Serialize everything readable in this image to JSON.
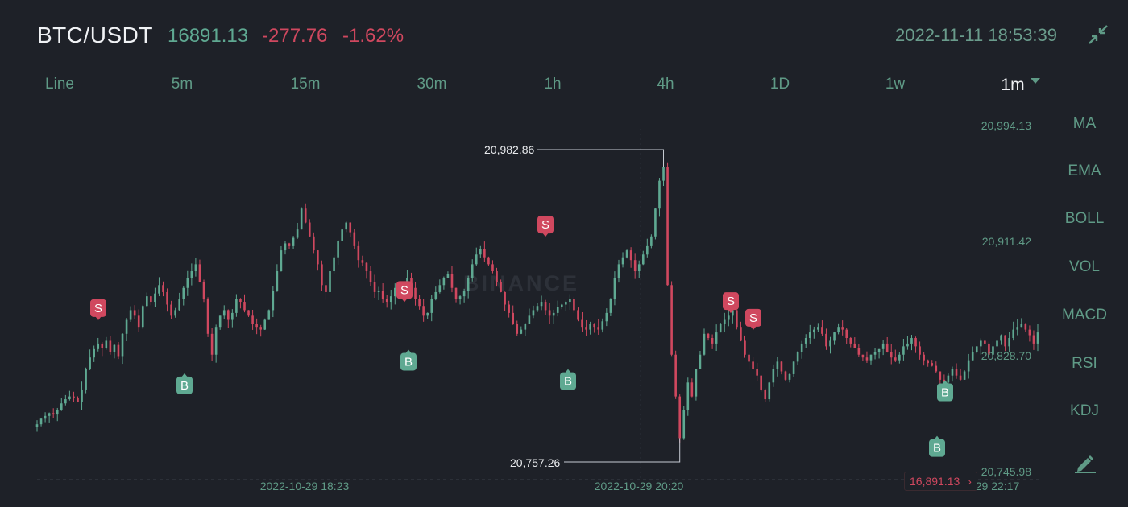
{
  "header": {
    "pair": "BTC/USDT",
    "price": "16891.13",
    "change": "-277.76",
    "change_pct": "-1.62%",
    "datetime": "2022-11-11 18:53:39",
    "collapse_icon": "collapse-arrows-icon"
  },
  "intervals": [
    "Line",
    "5m",
    "15m",
    "30m",
    "1h",
    "4h",
    "1D",
    "1w",
    "1m"
  ],
  "active_interval": "1m",
  "indicators": [
    "MA",
    "EMA",
    "BOLL",
    "VOL",
    "MACD",
    "RSI",
    "KDJ"
  ],
  "tools": {
    "draw_icon": "pencil-icon"
  },
  "watermark": "BINANCE",
  "colors": {
    "up": "#5fa992",
    "down": "#d0485f",
    "background": "#1e2128"
  },
  "chart_data": {
    "type": "candlestick",
    "y_ticks": [
      "20,994.13",
      "20,911.42",
      "20,828.70",
      "20,745.98"
    ],
    "x_ticks": [
      "2022-10-29 18:23",
      "2022-10-29 20:20",
      "29 22:17"
    ],
    "high_label": "20,982.86",
    "low_label": "20,757.26",
    "last_price_label": "16,891.13",
    "ylim": [
      20745.98,
      20994.13
    ],
    "close_series": [
      20780,
      20784,
      20786,
      20788,
      20787,
      20790,
      20795,
      20798,
      20800,
      20799,
      20796,
      20805,
      20820,
      20828,
      20834,
      20838,
      20835,
      20840,
      20832,
      20837,
      20829,
      20845,
      20855,
      20862,
      20858,
      20850,
      20865,
      20872,
      20868,
      20874,
      20880,
      20875,
      20866,
      20858,
      20862,
      20870,
      20878,
      20885,
      20890,
      20895,
      20882,
      20870,
      20845,
      20830,
      20850,
      20858,
      20862,
      20855,
      20860,
      20870,
      20868,
      20862,
      20858,
      20852,
      20850,
      20848,
      20855,
      20862,
      20876,
      20890,
      20905,
      20910,
      20908,
      20914,
      20920,
      20935,
      20925,
      20915,
      20905,
      20895,
      20880,
      20875,
      20890,
      20900,
      20912,
      20920,
      20925,
      20918,
      20908,
      20898,
      20896,
      20890,
      20882,
      20875,
      20876,
      20870,
      20868,
      20872,
      20878,
      20875,
      20880,
      20885,
      20878,
      20870,
      20865,
      20858,
      20860,
      20870,
      20875,
      20880,
      20885,
      20888,
      20878,
      20870,
      20872,
      20876,
      20885,
      20895,
      20902,
      20906,
      20900,
      20895,
      20890,
      20882,
      20875,
      20866,
      20860,
      20852,
      20845,
      20848,
      20852,
      20858,
      20862,
      20865,
      20868,
      20862,
      20858,
      20860,
      20864,
      20866,
      20868,
      20870,
      20862,
      20855,
      20850,
      20848,
      20852,
      20850,
      20848,
      20854,
      20860,
      20870,
      20885,
      20895,
      20900,
      20905,
      20898,
      20890,
      20895,
      20902,
      20908,
      20915,
      20935,
      20955,
      20965,
      20880,
      20830,
      20800,
      20770,
      20790,
      20810,
      20800,
      20820,
      20830,
      20845,
      20842,
      20838,
      20846,
      20852,
      20855,
      20858,
      20862,
      20850,
      20840,
      20830,
      20825,
      20820,
      20815,
      20805,
      20798,
      20810,
      20820,
      20825,
      20818,
      20812,
      20816,
      20825,
      20832,
      20838,
      20842,
      20846,
      20848,
      20850,
      20845,
      20836,
      20840,
      20846,
      20850,
      20848,
      20842,
      20838,
      20835,
      20830,
      20828,
      20826,
      20830,
      20832,
      20834,
      20838,
      20832,
      20828,
      20826,
      20830,
      20836,
      20838,
      20842,
      20836,
      20830,
      20826,
      20824,
      20822,
      20818,
      20812,
      20810,
      20815,
      20820,
      20815,
      20812,
      20818,
      20826,
      20832,
      20836,
      20840,
      20838,
      20830,
      20836,
      20840,
      20844,
      20836,
      20842,
      20848,
      20850,
      20852,
      20848,
      20844,
      20838,
      20846
    ]
  },
  "trade_markers": [
    {
      "type": "S",
      "label": "S",
      "price": 20845
    },
    {
      "type": "B",
      "label": "B",
      "price": 20823
    },
    {
      "type": "S",
      "label": "S",
      "price": 20858
    },
    {
      "type": "B",
      "label": "B",
      "price": 20840
    },
    {
      "type": "S",
      "label": "S",
      "price": 20905
    },
    {
      "type": "S",
      "label": "S",
      "price": 20850
    },
    {
      "type": "B",
      "label": "B",
      "price": 20778
    },
    {
      "type": "B",
      "label": "B",
      "price": 20826
    },
    {
      "type": "S",
      "label": "S",
      "price": 20838
    },
    {
      "type": "B",
      "label": "B",
      "price": 20818
    }
  ]
}
